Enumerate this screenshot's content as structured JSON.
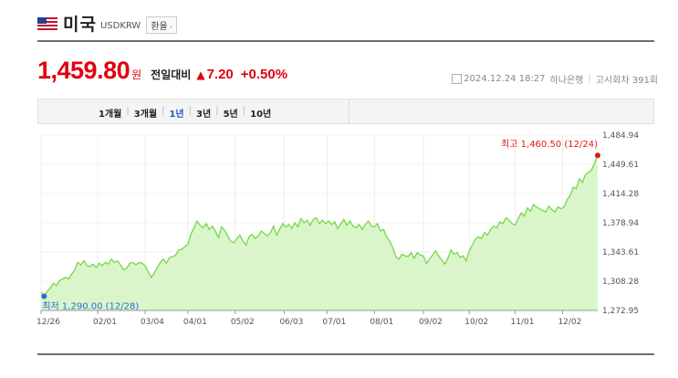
{
  "header": {
    "flag_icon": "us-flag-icon",
    "country": "미국",
    "code": "USDKRW",
    "exchange_button": "환율"
  },
  "price": {
    "value": "1,459.80",
    "unit": "원",
    "compare_label": "전일대비",
    "change_arrow": "▲",
    "change": "7.20",
    "change_pct": "+0.50%",
    "color": "#e1000f"
  },
  "meta": {
    "datetime": "2024.12.24 18:27",
    "bank": "하나은행",
    "notice": "고시회차 391회"
  },
  "period_tabs": {
    "items": [
      "1개월",
      "3개월",
      "1년",
      "3년",
      "5년",
      "10년"
    ],
    "active": "1년"
  },
  "chart_data": {
    "type": "area",
    "y_ticks": [
      "1,484.94",
      "1,449.61",
      "1,414.28",
      "1,378.94",
      "1,343.61",
      "1,308.28",
      "1,272.95"
    ],
    "ylim": [
      1272.95,
      1484.94
    ],
    "x_ticks": [
      "12/26",
      "02/01",
      "03/04",
      "04/01",
      "05/02",
      "06/03",
      "07/01",
      "08/01",
      "09/02",
      "10/02",
      "11/01",
      "12/02"
    ],
    "x_tick_days": [
      0,
      37,
      68,
      96,
      127,
      159,
      187,
      218,
      250,
      280,
      310,
      341
    ],
    "x_range_days": [
      0,
      364
    ],
    "high": {
      "label": "최고 1,460.50 (12/24)",
      "value": 1460.5,
      "date": "12/24"
    },
    "low": {
      "label": "최저 1,290.00 (12/28)",
      "value": 1290.0,
      "date": "12/28"
    },
    "series": [
      {
        "color": "#6fd53e",
        "fill": "#d9f5c9",
        "points": [
          [
            0,
            1295
          ],
          [
            2,
            1290
          ],
          [
            4,
            1296
          ],
          [
            6,
            1300
          ],
          [
            8,
            1306
          ],
          [
            10,
            1303
          ],
          [
            12,
            1309
          ],
          [
            14,
            1311
          ],
          [
            16,
            1313
          ],
          [
            18,
            1311
          ],
          [
            20,
            1317
          ],
          [
            22,
            1322
          ],
          [
            24,
            1331
          ],
          [
            26,
            1328
          ],
          [
            28,
            1333
          ],
          [
            30,
            1327
          ],
          [
            32,
            1326
          ],
          [
            34,
            1329
          ],
          [
            36,
            1325
          ],
          [
            38,
            1330
          ],
          [
            40,
            1327
          ],
          [
            42,
            1331
          ],
          [
            44,
            1329
          ],
          [
            46,
            1335
          ],
          [
            48,
            1331
          ],
          [
            50,
            1333
          ],
          [
            52,
            1328
          ],
          [
            54,
            1322
          ],
          [
            56,
            1324
          ],
          [
            58,
            1330
          ],
          [
            60,
            1331
          ],
          [
            62,
            1328
          ],
          [
            64,
            1331
          ],
          [
            66,
            1330
          ],
          [
            68,
            1327
          ],
          [
            70,
            1320
          ],
          [
            72,
            1313
          ],
          [
            74,
            1318
          ],
          [
            76,
            1325
          ],
          [
            78,
            1331
          ],
          [
            80,
            1335
          ],
          [
            82,
            1330
          ],
          [
            84,
            1337
          ],
          [
            86,
            1338
          ],
          [
            88,
            1340
          ],
          [
            90,
            1346
          ],
          [
            92,
            1347
          ],
          [
            94,
            1350
          ],
          [
            96,
            1353
          ],
          [
            98,
            1365
          ],
          [
            100,
            1373
          ],
          [
            102,
            1381
          ],
          [
            104,
            1376
          ],
          [
            106,
            1373
          ],
          [
            108,
            1378
          ],
          [
            110,
            1371
          ],
          [
            112,
            1375
          ],
          [
            114,
            1369
          ],
          [
            116,
            1361
          ],
          [
            118,
            1374
          ],
          [
            120,
            1370
          ],
          [
            122,
            1363
          ],
          [
            124,
            1357
          ],
          [
            126,
            1355
          ],
          [
            128,
            1360
          ],
          [
            130,
            1364
          ],
          [
            132,
            1357
          ],
          [
            134,
            1352
          ],
          [
            136,
            1362
          ],
          [
            138,
            1365
          ],
          [
            140,
            1360
          ],
          [
            142,
            1363
          ],
          [
            144,
            1369
          ],
          [
            146,
            1366
          ],
          [
            148,
            1363
          ],
          [
            150,
            1367
          ],
          [
            152,
            1375
          ],
          [
            154,
            1364
          ],
          [
            156,
            1371
          ],
          [
            158,
            1378
          ],
          [
            160,
            1374
          ],
          [
            162,
            1377
          ],
          [
            164,
            1372
          ],
          [
            166,
            1379
          ],
          [
            168,
            1374
          ],
          [
            170,
            1384
          ],
          [
            172,
            1379
          ],
          [
            174,
            1382
          ],
          [
            176,
            1376
          ],
          [
            178,
            1383
          ],
          [
            180,
            1385
          ],
          [
            182,
            1378
          ],
          [
            184,
            1382
          ],
          [
            186,
            1378
          ],
          [
            188,
            1381
          ],
          [
            190,
            1377
          ],
          [
            192,
            1380
          ],
          [
            194,
            1372
          ],
          [
            196,
            1378
          ],
          [
            198,
            1383
          ],
          [
            200,
            1376
          ],
          [
            202,
            1381
          ],
          [
            204,
            1375
          ],
          [
            206,
            1373
          ],
          [
            208,
            1377
          ],
          [
            210,
            1371
          ],
          [
            212,
            1377
          ],
          [
            214,
            1381
          ],
          [
            216,
            1375
          ],
          [
            218,
            1374
          ],
          [
            220,
            1378
          ],
          [
            222,
            1369
          ],
          [
            224,
            1371
          ],
          [
            226,
            1362
          ],
          [
            228,
            1357
          ],
          [
            230,
            1349
          ],
          [
            232,
            1338
          ],
          [
            234,
            1335
          ],
          [
            236,
            1341
          ],
          [
            238,
            1339
          ],
          [
            240,
            1338
          ],
          [
            242,
            1343
          ],
          [
            244,
            1336
          ],
          [
            246,
            1343
          ],
          [
            248,
            1340
          ],
          [
            250,
            1339
          ],
          [
            252,
            1330
          ],
          [
            254,
            1335
          ],
          [
            256,
            1340
          ],
          [
            258,
            1345
          ],
          [
            260,
            1339
          ],
          [
            262,
            1334
          ],
          [
            264,
            1329
          ],
          [
            266,
            1336
          ],
          [
            268,
            1346
          ],
          [
            270,
            1341
          ],
          [
            272,
            1343
          ],
          [
            274,
            1337
          ],
          [
            276,
            1339
          ],
          [
            278,
            1333
          ],
          [
            280,
            1345
          ],
          [
            282,
            1352
          ],
          [
            284,
            1359
          ],
          [
            286,
            1362
          ],
          [
            288,
            1360
          ],
          [
            290,
            1367
          ],
          [
            292,
            1364
          ],
          [
            294,
            1371
          ],
          [
            296,
            1375
          ],
          [
            298,
            1373
          ],
          [
            300,
            1380
          ],
          [
            302,
            1378
          ],
          [
            304,
            1385
          ],
          [
            306,
            1382
          ],
          [
            308,
            1378
          ],
          [
            310,
            1376
          ],
          [
            312,
            1384
          ],
          [
            314,
            1391
          ],
          [
            316,
            1387
          ],
          [
            318,
            1397
          ],
          [
            320,
            1393
          ],
          [
            322,
            1401
          ],
          [
            324,
            1398
          ],
          [
            326,
            1396
          ],
          [
            328,
            1394
          ],
          [
            330,
            1392
          ],
          [
            332,
            1399
          ],
          [
            334,
            1395
          ],
          [
            336,
            1392
          ],
          [
            338,
            1398
          ],
          [
            340,
            1396
          ],
          [
            342,
            1398
          ],
          [
            344,
            1407
          ],
          [
            346,
            1412
          ],
          [
            348,
            1422
          ],
          [
            350,
            1420
          ],
          [
            352,
            1432
          ],
          [
            354,
            1428
          ],
          [
            356,
            1437
          ],
          [
            358,
            1440
          ],
          [
            360,
            1443
          ],
          [
            362,
            1451
          ],
          [
            364,
            1460.5
          ]
        ]
      }
    ]
  }
}
